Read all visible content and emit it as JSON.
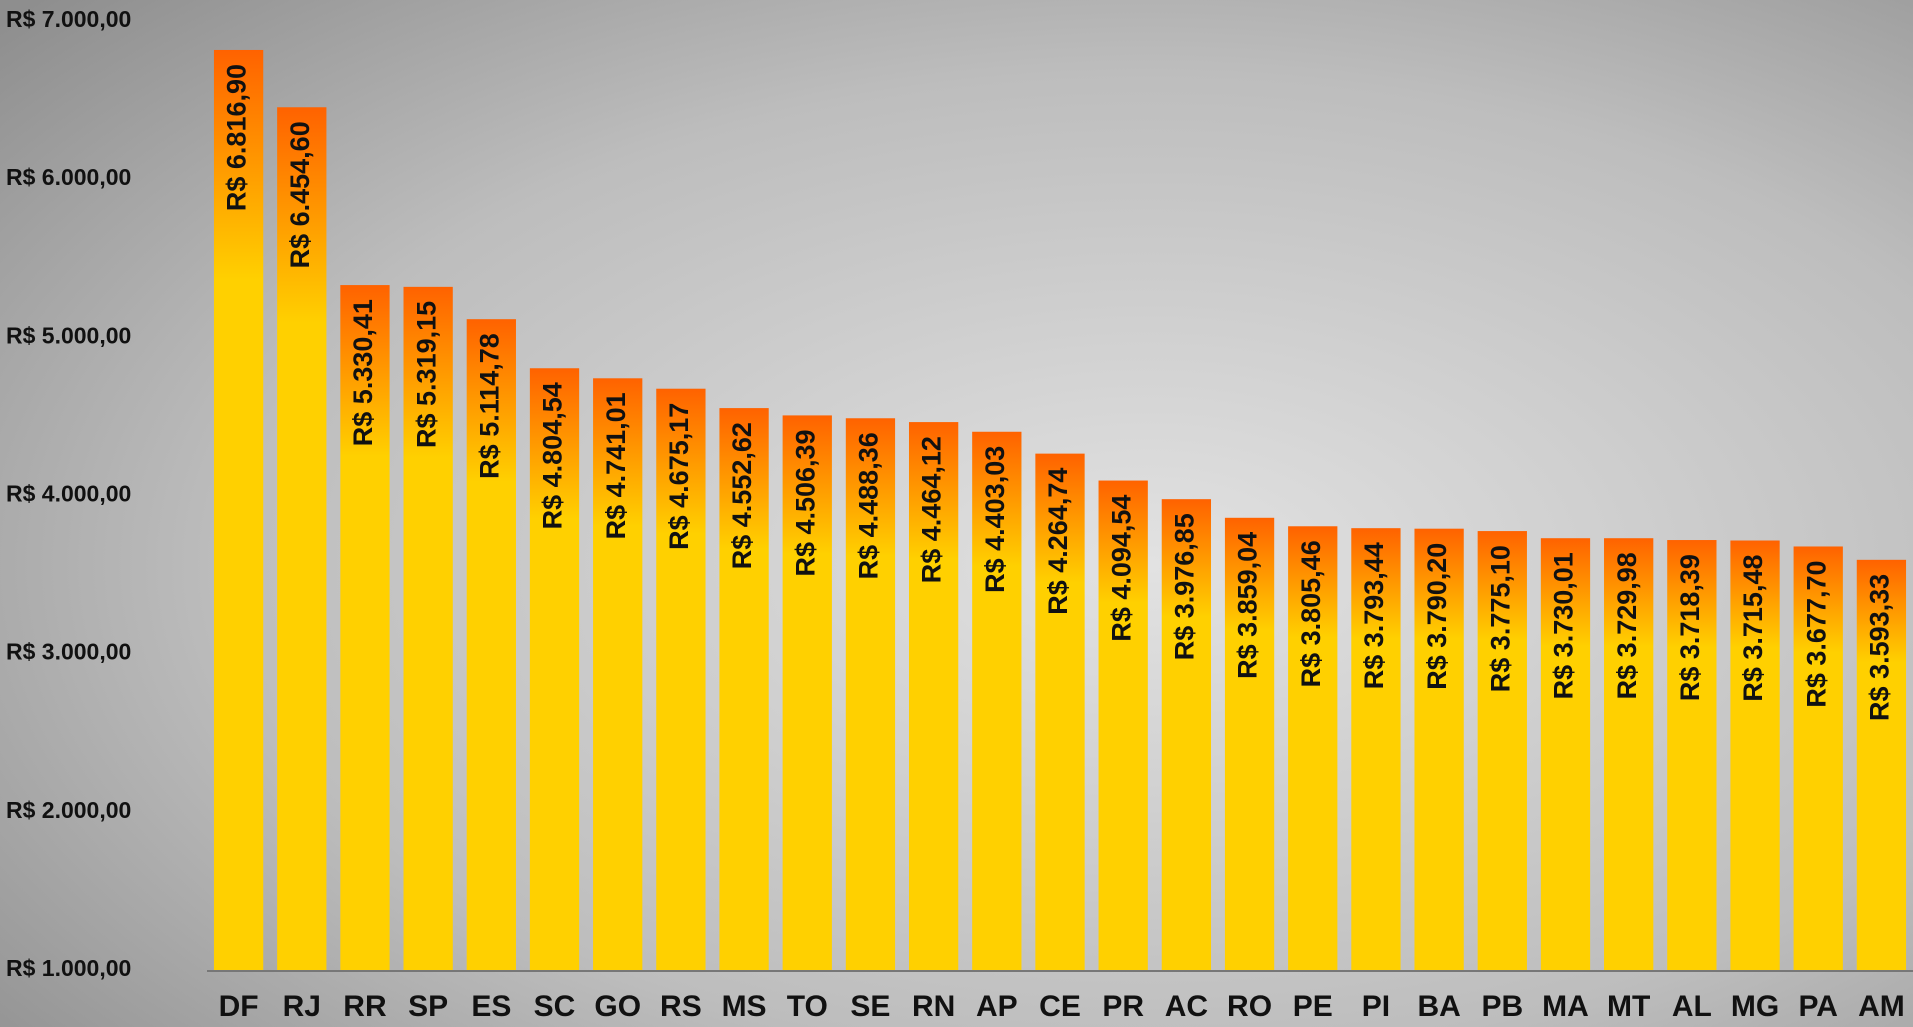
{
  "chart_data": {
    "type": "bar",
    "categories": [
      "DF",
      "RJ",
      "RR",
      "SP",
      "ES",
      "SC",
      "GO",
      "RS",
      "MS",
      "TO",
      "SE",
      "RN",
      "AP",
      "CE",
      "PR",
      "AC",
      "RO",
      "PE",
      "PI",
      "BA",
      "PB",
      "MA",
      "MT",
      "AL",
      "MG",
      "PA",
      "AM"
    ],
    "values": [
      6816.9,
      6454.6,
      5330.41,
      5319.15,
      5114.78,
      4804.54,
      4741.01,
      4675.17,
      4552.62,
      4506.39,
      4488.36,
      4464.12,
      4403.03,
      4264.74,
      4094.54,
      3976.85,
      3859.04,
      3805.46,
      3793.44,
      3790.2,
      3775.1,
      3730.01,
      3729.98,
      3718.39,
      3715.48,
      3677.7,
      3593.33
    ],
    "value_labels": [
      "R$ 6.816,90",
      "R$ 6.454,60",
      "R$ 5.330,41",
      "R$ 5.319,15",
      "R$ 5.114,78",
      "R$ 4.804,54",
      "R$ 4.741,01",
      "R$ 4.675,17",
      "R$ 4.552,62",
      "R$ 4.506,39",
      "R$ 4.488,36",
      "R$ 4.464,12",
      "R$ 4.403,03",
      "R$ 4.264,74",
      "R$ 4.094,54",
      "R$ 3.976,85",
      "R$ 3.859,04",
      "R$ 3.805,46",
      "R$ 3.793,44",
      "R$ 3.790,20",
      "R$ 3.775,10",
      "R$ 3.730,01",
      "R$ 3.729,98",
      "R$ 3.718,39",
      "R$ 3.715,48",
      "R$ 3.677,70",
      "R$ 3.593,33"
    ],
    "gradient": [
      "#ffd000",
      "#ff6200"
    ],
    "ylim": [
      1000,
      7000
    ],
    "yticks": [
      {
        "value": 1000,
        "label": "R$ 1.000,00"
      },
      {
        "value": 2000,
        "label": "R$ 2.000,00"
      },
      {
        "value": 3000,
        "label": "R$ 3.000,00"
      },
      {
        "value": 4000,
        "label": "R$ 4.000,00"
      },
      {
        "value": 5000,
        "label": "R$ 5.000,00"
      },
      {
        "value": 6000,
        "label": "R$ 6.000,00"
      },
      {
        "value": 7000,
        "label": "R$ 7.000,00"
      }
    ],
    "grid": false
  }
}
